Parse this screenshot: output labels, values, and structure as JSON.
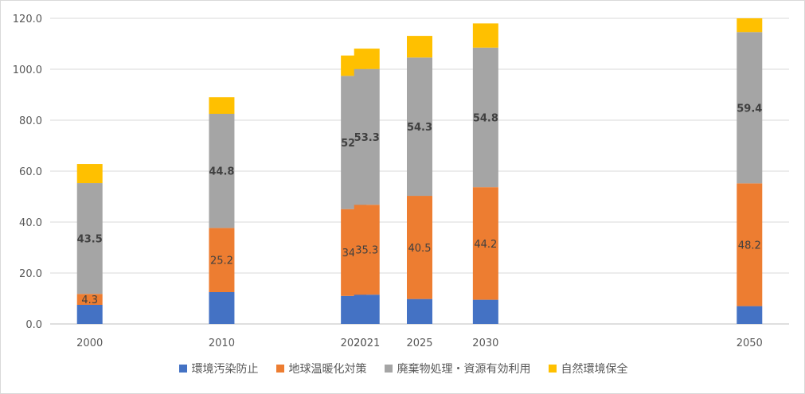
{
  "chart_data": {
    "type": "bar",
    "stacked": true,
    "categories": [
      "2000",
      "2010",
      "2020",
      "2021",
      "2025",
      "2030",
      "2050"
    ],
    "x": [
      2000,
      2010,
      2020,
      2021,
      2025,
      2030,
      2050
    ],
    "ylim": [
      0,
      120
    ],
    "yticks": [
      "0.0",
      "20.0",
      "40.0",
      "60.0",
      "80.0",
      "100.0",
      "120.0"
    ],
    "grid": true,
    "legend_position": "bottom",
    "series": [
      {
        "name": "環境汚染防止",
        "color": "#4472c4",
        "values": [
          7.5,
          12.5,
          11.0,
          11.5,
          9.8,
          9.5,
          7.0
        ],
        "labels": [
          "",
          "",
          "",
          "",
          "",
          "",
          ""
        ]
      },
      {
        "name": "地球温暖化対策",
        "color": "#ed7d31",
        "values": [
          4.3,
          25.2,
          34.1,
          35.3,
          40.5,
          44.2,
          48.2
        ],
        "labels": [
          "4.3",
          "25.2",
          "34.1",
          "35.3",
          "40.5",
          "44.2",
          "48.2"
        ]
      },
      {
        "name": "廃棄物処理・資源有効利用",
        "color": "#a5a5a5",
        "values": [
          43.5,
          44.8,
          52.3,
          53.3,
          54.3,
          54.8,
          59.4
        ],
        "labels": [
          "43.5",
          "44.8",
          "52.3",
          "53.3",
          "54.3",
          "54.8",
          "59.4"
        ]
      },
      {
        "name": "自然環境保全",
        "color": "#ffc000",
        "values": [
          7.5,
          6.5,
          8.0,
          8.0,
          8.5,
          9.5,
          5.5
        ],
        "labels": [
          "",
          "",
          "",
          "",
          "",
          "",
          ""
        ]
      }
    ]
  }
}
